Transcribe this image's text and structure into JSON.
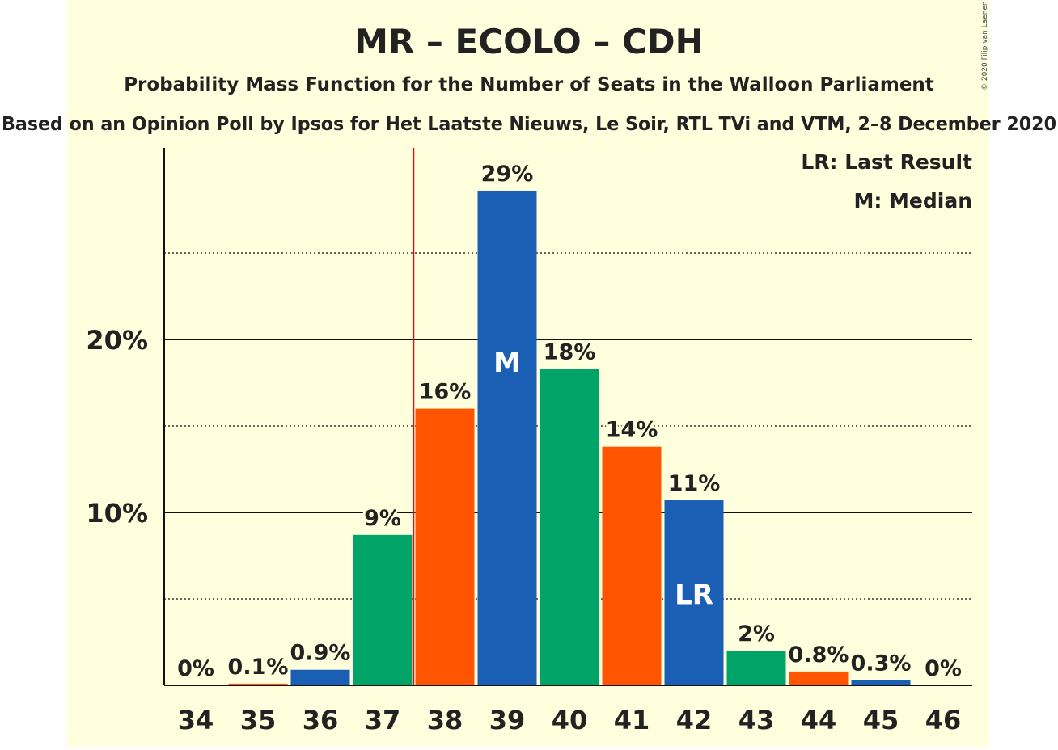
{
  "chart_data": {
    "type": "bar",
    "title": "MR – ECOLO – CDH",
    "subtitle": "Probability Mass Function for the Number of Seats in the Walloon Parliament",
    "subtitle2": "Based on an Opinion Poll by Ipsos for Het Laatste Nieuws, Le Soir, RTL TVi and VTM, 2–8 December 2020",
    "copyright": "© 2020 Filip van Laenen",
    "legend": [
      "LR: Last Result",
      "M: Median"
    ],
    "legend_position": "top-right",
    "categories": [
      "34",
      "35",
      "36",
      "37",
      "38",
      "39",
      "40",
      "41",
      "42",
      "43",
      "44",
      "45",
      "46"
    ],
    "values": [
      0,
      0.1,
      0.9,
      8.7,
      16.0,
      28.6,
      18.3,
      13.8,
      10.7,
      2.0,
      0.8,
      0.3,
      0
    ],
    "labels": [
      "0%",
      "0.1%",
      "0.9%",
      "9%",
      "16%",
      "29%",
      "18%",
      "14%",
      "11%",
      "2%",
      "0.8%",
      "0.3%",
      "0%"
    ],
    "bar_colors": [
      "#1a5fb4",
      "#ff5500",
      "#1a5fb4",
      "#00a466",
      "#ff5500",
      "#1a5fb4",
      "#00a466",
      "#ff5500",
      "#1a5fb4",
      "#00a466",
      "#ff5500",
      "#1a5fb4",
      "#00a466"
    ],
    "markers": [
      {
        "category": "39",
        "text": "M"
      },
      {
        "category": "42",
        "text": "LR"
      }
    ],
    "majority_line_between": [
      "37",
      "38"
    ],
    "y_ticks": [
      {
        "value": 10,
        "label": "10%"
      },
      {
        "value": 20,
        "label": "20%"
      }
    ],
    "minor_gridlines": [
      5,
      15,
      25
    ],
    "ylim": [
      0,
      31
    ],
    "colors": {
      "background": "#ffffdd",
      "majority_line": "#ff0000",
      "text": "#222222"
    }
  }
}
